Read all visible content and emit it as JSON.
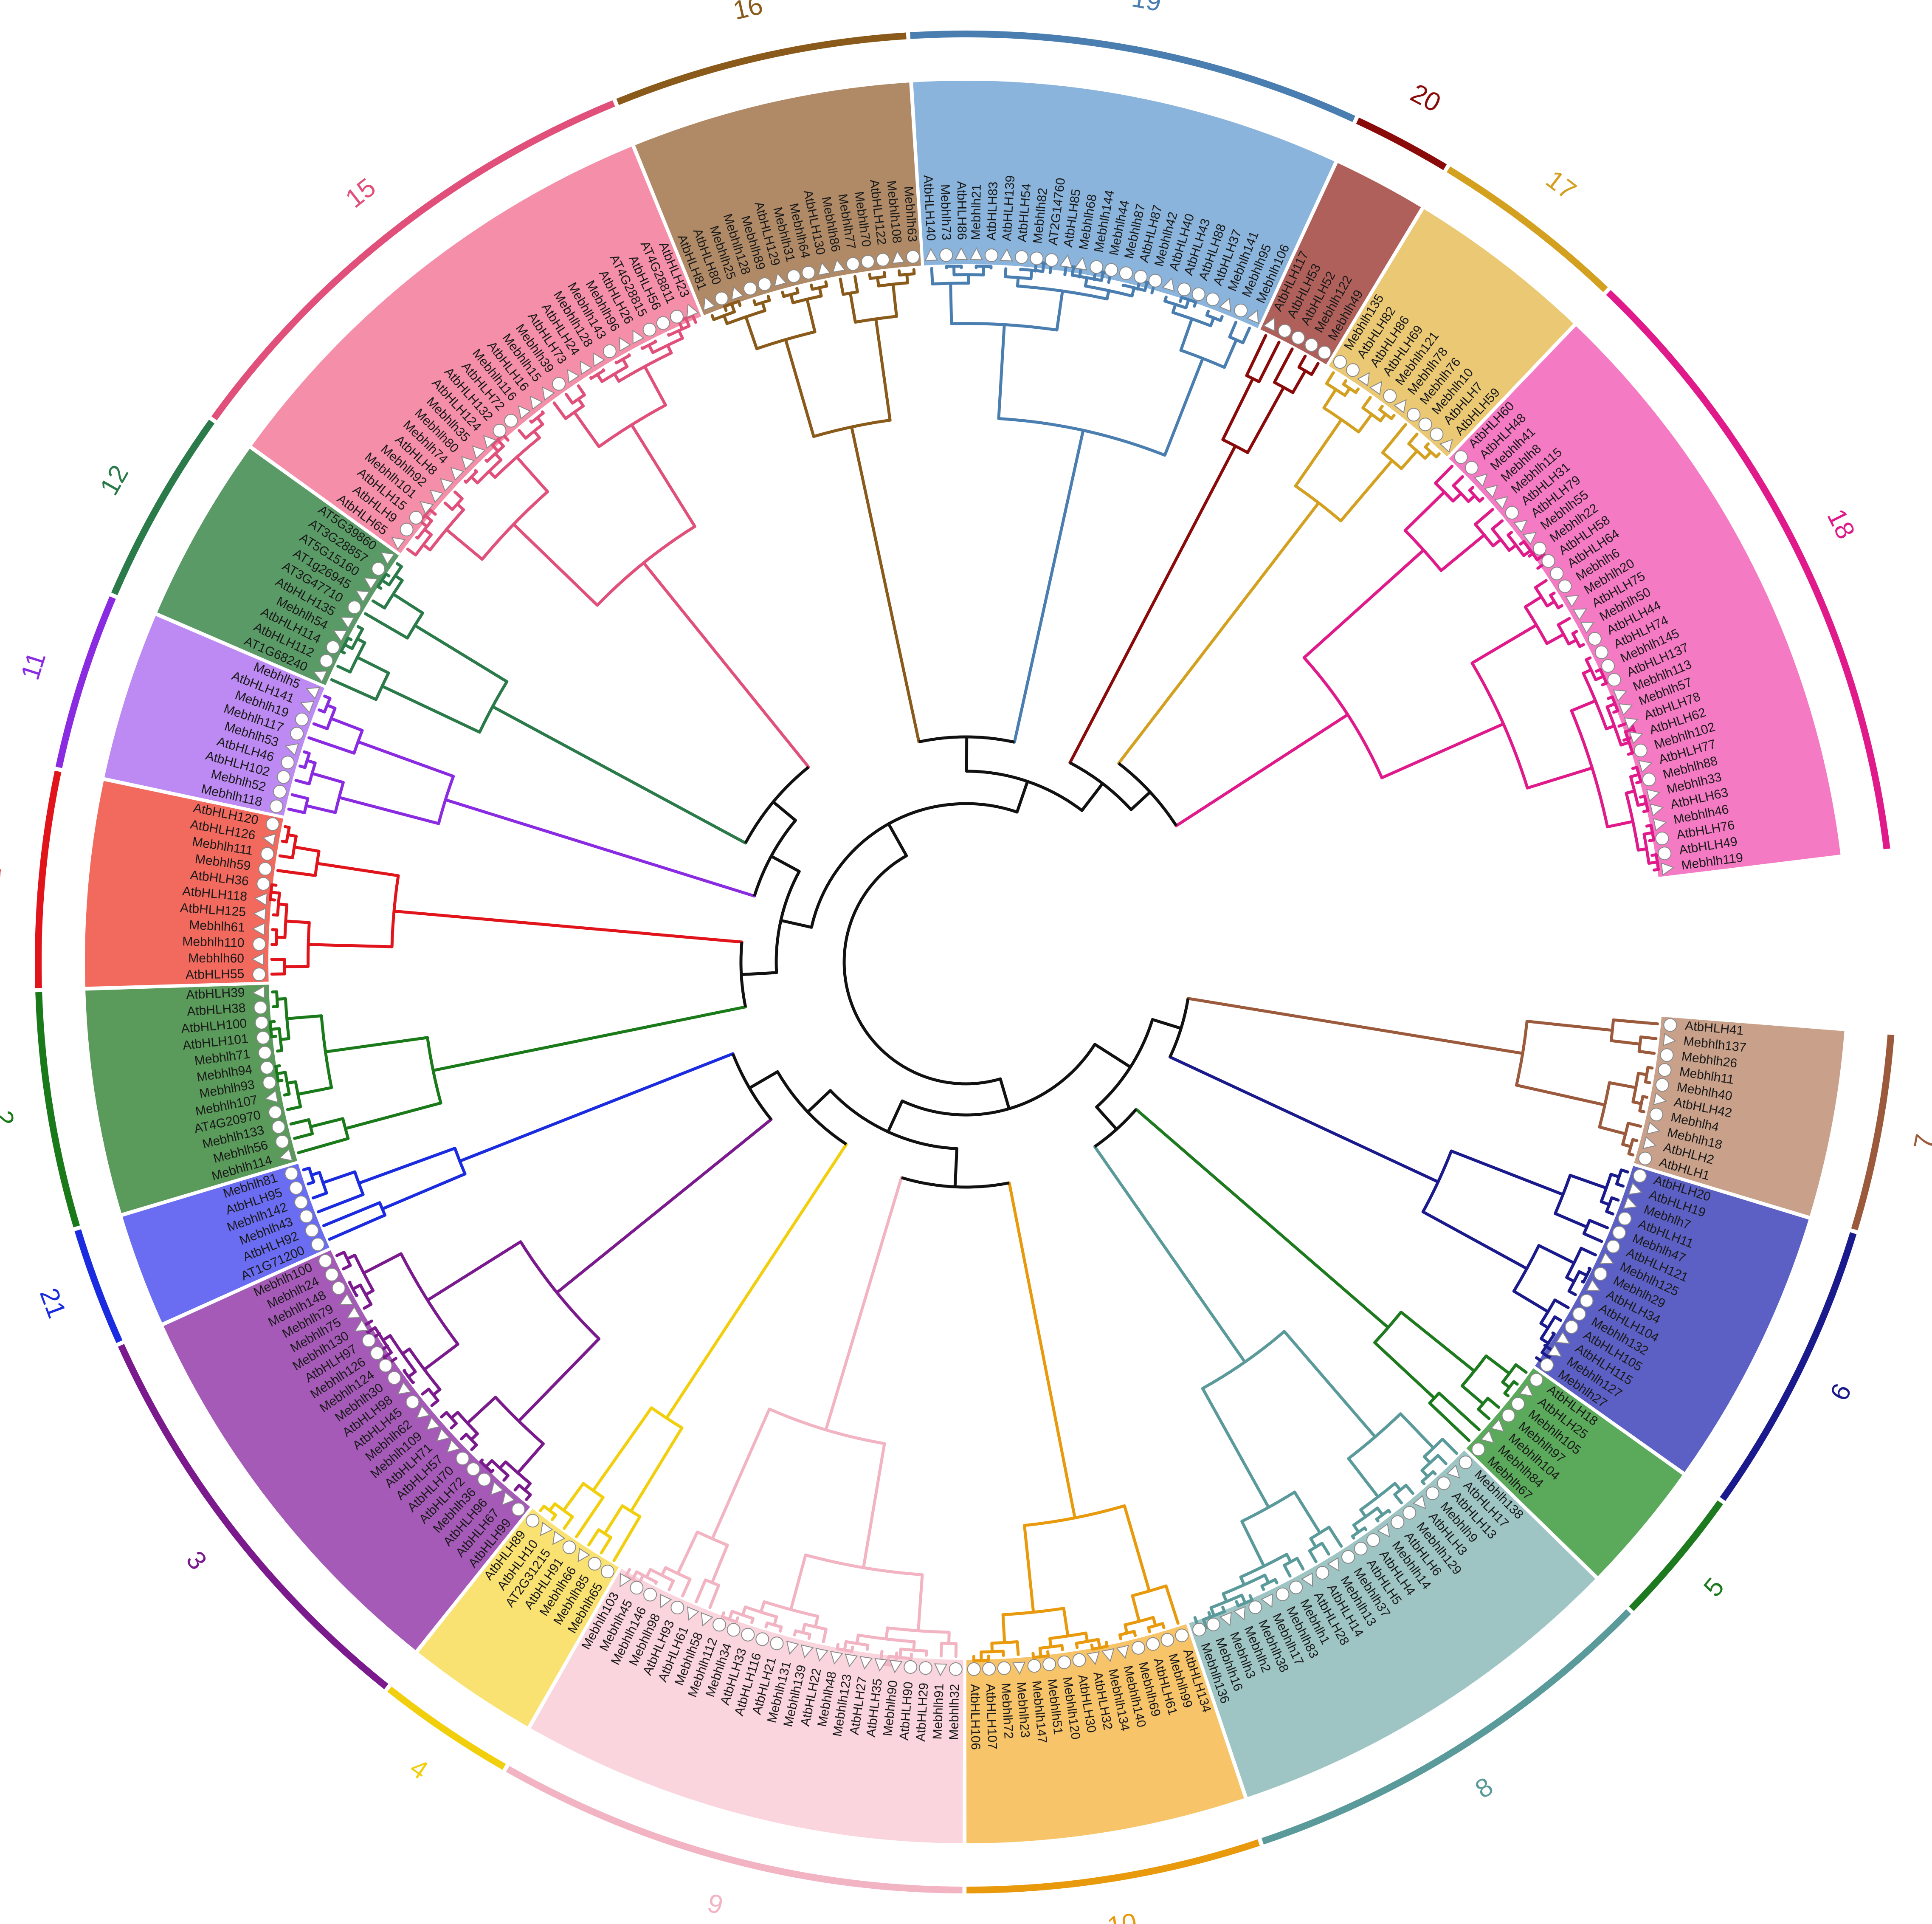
{
  "groups": [
    {
      "id": "7",
      "color": "#9C5A3C",
      "sector": "#C9A18B",
      "leaves": [
        "AtbHLH41",
        "Mebhlh137",
        "Mebhlh26",
        "Mebhlh11",
        "Mebhlh40",
        "AtbHLH42",
        "Mebhlh4",
        "Mebhlh18",
        "AtbHLH2",
        "AtbHLH1"
      ]
    },
    {
      "id": "6",
      "color": "#1A1A8C",
      "sector": "#5C60C4",
      "leaves": [
        "AtbHLH20",
        "AtbHLH19",
        "Mebhlh7",
        "AtbHLH11",
        "Mebhlh47",
        "AtbHLH121",
        "Mebhlh125",
        "Mebhlh29",
        "AtbHLH34",
        "AtbHLH104",
        "Mebhlh132",
        "AtbHLH105",
        "AtbHLH115",
        "Mebhlh127",
        "Mebhlh27"
      ]
    },
    {
      "id": "5",
      "color": "#1E7A1E",
      "sector": "#5BAA5B",
      "leaves": [
        "AtbHLH18",
        "AtbHLH25",
        "Mebhlh105",
        "Mebhlh97",
        "Mebhlh104",
        "Mebhlh84",
        "Mebhlh67"
      ]
    },
    {
      "id": "8",
      "color": "#5B9A9A",
      "sector": "#9EC4C4",
      "leaves": [
        "Mebhlh138",
        "AtbHLH17",
        "AtbHLH13",
        "Mebhlh9",
        "AtbHLH3",
        "Mebhlh129",
        "AtbHLH6",
        "Mebhlh14",
        "AtbHLH4",
        "AtbHLH5",
        "Mebhlh37",
        "Mebhlh13",
        "AtbHLH14",
        "AtbHLH28",
        "Mebhlh1",
        "Mebhlh83",
        "Mebhlh17",
        "Mebhlh38",
        "Mebhlh2",
        "Mebhlh3",
        "Mebhlh16",
        "Mebhlh136"
      ]
    },
    {
      "id": "10",
      "color": "#E89A0C",
      "sector": "#F7C46A",
      "leaves": [
        "AtbHLH134",
        "Mebhlh99",
        "AtbHLH61",
        "Mebhlh69",
        "Mebhlh140",
        "Mebhlh134",
        "AtbHLH32",
        "AtbHLH30",
        "Mebhlh120",
        "Mebhlh51",
        "Mebhlh147",
        "Mebhlh23",
        "Mebhlh72",
        "AtbHLH107",
        "AtbHLH106"
      ]
    },
    {
      "id": "9",
      "color": "#F2B3C2",
      "sector": "#FAD5DD",
      "leaves": [
        "Mebhlh32",
        "Mebhlh91",
        "AtbHLH29",
        "AtbHLH90",
        "Mebhlh90",
        "AtbHLH35",
        "AtbHLH27",
        "Mebhlh123",
        "Mebhlh48",
        "AtbHLH22",
        "Mebhlh139",
        "Mebhlh131",
        "AtbHLH21",
        "AtbHLH116",
        "AtbHLH33",
        "Mebhlh34",
        "Mebhlh112",
        "Mebhlh58",
        "AtbHLH61",
        "AtbHLH93",
        "Mebhlh98",
        "Mebhlh146",
        "Mebhlh45",
        "Mebhlh103"
      ]
    },
    {
      "id": "4",
      "color": "#F2CF0C",
      "sector": "#FAE272",
      "leaves": [
        "Mebhlh65",
        "Mebhlh85",
        "Mebhlh66",
        "AtbHLH91",
        "AT2G31215",
        "AtbHLH10",
        "AtbHLH89"
      ]
    },
    {
      "id": "3",
      "color": "#7A1A8C",
      "sector": "#A55AB8",
      "leaves": [
        "AtbHLH99",
        "AtbHLH67",
        "AtbHLH96",
        "Mebhlh36",
        "AtbHLH72",
        "AtbHLH70",
        "AtbHLH57",
        "AtbHLH71",
        "Mebhlh109",
        "Mebhlh62",
        "AtbHLH45",
        "AtbHLH98",
        "Mebhlh30",
        "Mebhlh124",
        "Mebhlh126",
        "AtbHLH97",
        "Mebhlh130",
        "Mebhlh75",
        "Mebhlh79",
        "Mebhlh148",
        "Mebhlh24",
        "Mebhlh100"
      ]
    },
    {
      "id": "21",
      "color": "#1A2BE0",
      "sector": "#6A6CF2",
      "leaves": [
        "AT1G71200",
        "AtbHLH92",
        "Mebhlh43",
        "Mebhlh142",
        "AtbHLH95",
        "Mebhlh81"
      ]
    },
    {
      "id": "2",
      "color": "#1A7A1A",
      "sector": "#5A9A5A",
      "leaves": [
        "Mebhlh114",
        "Mebhlh56",
        "Mebhlh133",
        "AT4G20970",
        "Mebhlh107",
        "Mebhlh93",
        "Mebhlh94",
        "Mebhlh71",
        "AtbHLH101",
        "AtbHLH100",
        "AtbHLH38",
        "AtbHLH39"
      ]
    },
    {
      "id": "1",
      "color": "#E0141A",
      "sector": "#F2695E",
      "leaves": [
        "AtbHLH55",
        "Mebhlh60",
        "Mebhlh110",
        "Mebhlh61",
        "AtbHLH125",
        "AtbHLH118",
        "AtbHLH36",
        "Mebhlh59",
        "Mebhlh111",
        "AtbHLH126",
        "AtbHLH120"
      ]
    },
    {
      "id": "11",
      "color": "#8A2BE2",
      "sector": "#BC8AF2",
      "leaves": [
        "Mebhlh118",
        "Mebhlh52",
        "AtbHLH102",
        "AtbHLH46",
        "Mebhlh53",
        "Mebhlh117",
        "Mebhlh19",
        "AtbHLH141",
        "Mebhlh5"
      ]
    },
    {
      "id": "12",
      "color": "#2A7A4A",
      "sector": "#5A9A66",
      "leaves": [
        "AT1G68240",
        "AtbHLH112",
        "AtbHLH114",
        "Mebhlh54",
        "AtbHLH135",
        "AT3G47710",
        "AT1g26945",
        "AT5G15160",
        "AT3G28857",
        "AT5G39860"
      ]
    },
    {
      "id": "15",
      "color": "#E0507A",
      "sector": "#F58EA8",
      "leaves": [
        "AtbHLH65",
        "AtbHLH9",
        "AtbHLH15",
        "Mebhlh101",
        "Mebhlh92",
        "AtbHLH8",
        "Mebhlh74",
        "Mebhlh80",
        "Mebhlh35",
        "AtbHLH124",
        "AtbHLH132",
        "AtbHLH72",
        "Mebhlh116",
        "AtbHLH16",
        "Mebhlh15",
        "Mebhlh39",
        "AtbHLH73",
        "AtbHLH24",
        "Mebhlh128",
        "Mebhlh143",
        "Mebhlh96",
        "AtbHLH26",
        "AT4G28815",
        "AtbHLH56",
        "AT4G28811",
        "AtbHLH23"
      ]
    },
    {
      "id": "16",
      "color": "#8A5A1A",
      "sector": "#B08A66",
      "leaves": [
        "AtbHLH81",
        "AtbHLH80",
        "Mebhlh25",
        "Mebhlh128",
        "Mebhlh89",
        "AtbHLH129",
        "Mebhlh31",
        "Mebhlh64",
        "AtbHLH130",
        "Mebhlh86",
        "Mebhlh77",
        "Mebhlh70",
        "AtbHLH122",
        "Mebhlh108",
        "Mebhlh63"
      ]
    },
    {
      "id": "19",
      "color": "#4A7EB0",
      "sector": "#8AB4DC",
      "leaves": [
        "AtbHLH140",
        "Mebhlh73",
        "AtbHLH86",
        "Mebhlh21",
        "AtbHLH83",
        "AtbHLH139",
        "AtbHLH54",
        "Mebhlh82",
        "AT2G14760",
        "AtbHLH85",
        "Mebhlh68",
        "Mebhlh144",
        "Mebhlh44",
        "Mebhlh87",
        "AtbHLH87",
        "Mebhlh42",
        "AtbHLH40",
        "AtbHLH43",
        "AtbHLH88",
        "AtbHLH37",
        "Mebhlh141",
        "Mebhlh95",
        "Mebhlh106"
      ]
    },
    {
      "id": "20",
      "color": "#8A0A0A",
      "sector": "#B0605A",
      "leaves": [
        "AtbHLH117",
        "AtbHLH53",
        "AtbHLH52",
        "Mebhlh122",
        "Mebhlh49"
      ]
    },
    {
      "id": "17",
      "color": "#D4A020",
      "sector": "#EAC874",
      "leaves": [
        "Mebhlh135",
        "AtbHLH82",
        "AtbHLH86",
        "AtbHLH69",
        "Mebhlh121",
        "Mebhlh78",
        "Mebhlh76",
        "Mebhlh10",
        "AtbHLH7",
        "AtbHLH59"
      ]
    },
    {
      "id": "18",
      "color": "#E01A8A",
      "sector": "#F57AC4",
      "leaves": [
        "AtbHLH60",
        "AtbHLH48",
        "Mebhlh41",
        "Mebhlh8",
        "Mebhlh115",
        "AtbHLH31",
        "AtbHLH79",
        "Mebhlh55",
        "Mebhlh22",
        "AtbHLH58",
        "AtbHLH64",
        "Mebhlh6",
        "Mebhlh20",
        "AtbHLH75",
        "Mebhlh50",
        "AtbHLH44",
        "AtbHLH74",
        "Mebhlh145",
        "AtbHLH137",
        "Mebhlh113",
        "Mebhlh57",
        "AtbHLH78",
        "AtbHLH62",
        "Mebhlh102",
        "AtbHLH77",
        "Mebhlh88",
        "Mebhlh33",
        "AtbHLH63",
        "Mebhlh46",
        "AtbHLH76",
        "AtbHLH49",
        "Mebhlh119"
      ]
    }
  ]
}
